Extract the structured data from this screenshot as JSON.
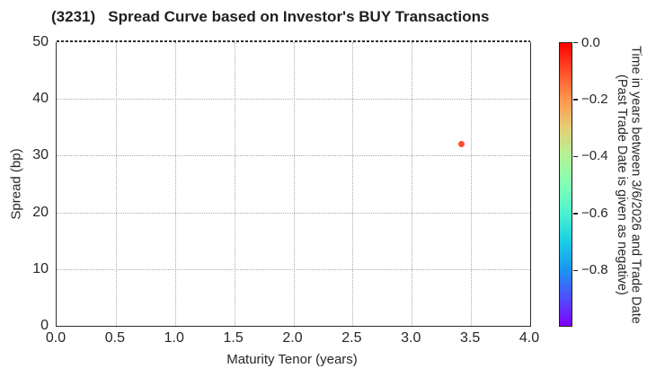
{
  "chart_data": {
    "type": "scatter",
    "title": "(3231)   Spread Curve based on Investor's BUY Transactions",
    "xlabel": "Maturity Tenor (years)",
    "ylabel": "Spread (bp)",
    "xlim": [
      0.0,
      4.0
    ],
    "ylim": [
      0,
      50
    ],
    "grid": true,
    "xticks": {
      "values": [
        0.0,
        0.5,
        1.0,
        1.5,
        2.0,
        2.5,
        3.0,
        3.5,
        4.0
      ],
      "labels": [
        "0.0",
        "0.5",
        "1.0",
        "1.5",
        "2.0",
        "2.5",
        "3.0",
        "3.5",
        "4.0"
      ]
    },
    "yticks": {
      "values": [
        0,
        10,
        20,
        30,
        40,
        50
      ],
      "labels": [
        "0",
        "10",
        "20",
        "30",
        "40",
        "50"
      ]
    },
    "points": [
      {
        "x": 3.42,
        "y": 32,
        "time_value": -0.1,
        "color": "#ff4f28"
      }
    ],
    "colorbar": {
      "colormap": "rainbow",
      "min": -1.0,
      "max": 0.0,
      "ticks": [
        {
          "value": 0.0,
          "label": "0.0"
        },
        {
          "value": -0.2,
          "label": "−0.2"
        },
        {
          "value": -0.4,
          "label": "−0.4"
        },
        {
          "value": -0.6,
          "label": "−0.6"
        },
        {
          "value": -0.8,
          "label": "−0.8"
        }
      ],
      "label_line1": "Time in years between 3/6/2026 and Trade Date",
      "label_line2": "(Past Trade Date is given as negative)",
      "gradient_stops": [
        [
          "0%",
          "#ff0000"
        ],
        [
          "10%",
          "#ff4f28"
        ],
        [
          "20%",
          "#ff964f"
        ],
        [
          "30%",
          "#e6ce74"
        ],
        [
          "40%",
          "#b3f296"
        ],
        [
          "50%",
          "#80ffb4"
        ],
        [
          "60%",
          "#4df2ce"
        ],
        [
          "70%",
          "#1acee3"
        ],
        [
          "80%",
          "#1a96f2"
        ],
        [
          "90%",
          "#4d4ffc"
        ],
        [
          "100%",
          "#8000ff"
        ]
      ]
    },
    "style_colors": {
      "spine": "#2e2e2e",
      "grid": "#a9a9a9",
      "text": "#262626"
    }
  }
}
